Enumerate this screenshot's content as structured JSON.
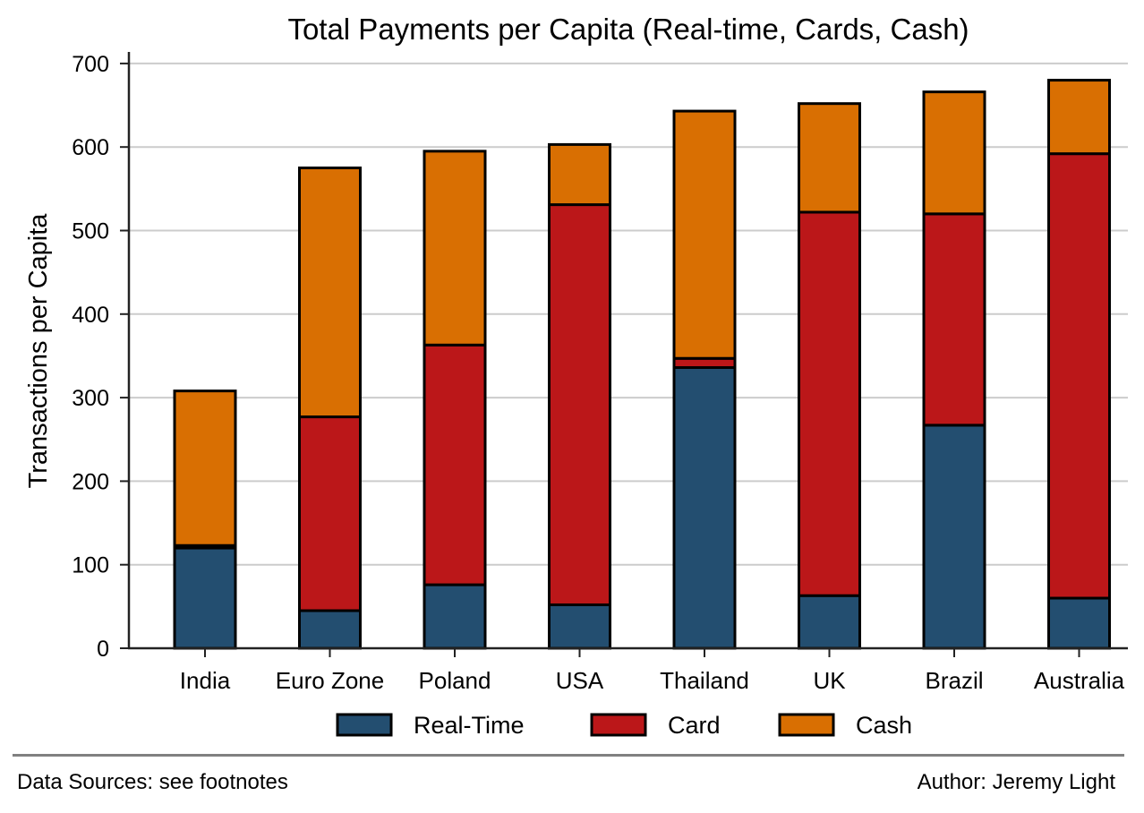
{
  "chart_data": {
    "type": "bar",
    "stacked": true,
    "title": "Total Payments per Capita (Real-time, Cards, Cash)",
    "xlabel": "",
    "ylabel": "Transactions per Capita",
    "ylim": [
      0,
      715
    ],
    "yticks": [
      0,
      100,
      200,
      300,
      400,
      500,
      600,
      700
    ],
    "grid": "horizontal",
    "legend_position": "bottom",
    "categories": [
      "India",
      "Euro Zone",
      "Poland",
      "USA",
      "Thailand",
      "UK",
      "Brazil",
      "Australia"
    ],
    "series": [
      {
        "name": "Real-Time",
        "color": "#234e70",
        "values": [
          120,
          45,
          76,
          52,
          336,
          63,
          267,
          60
        ]
      },
      {
        "name": "Card",
        "color": "#bb1719",
        "values": [
          3,
          232,
          287,
          479,
          11,
          459,
          253,
          532
        ]
      },
      {
        "name": "Cash",
        "color": "#d96f02",
        "values": [
          185,
          298,
          232,
          72,
          296,
          130,
          146,
          88
        ]
      }
    ]
  },
  "footer": {
    "sources": "Data Sources: see footnotes",
    "author": "Author: Jeremy Light"
  }
}
